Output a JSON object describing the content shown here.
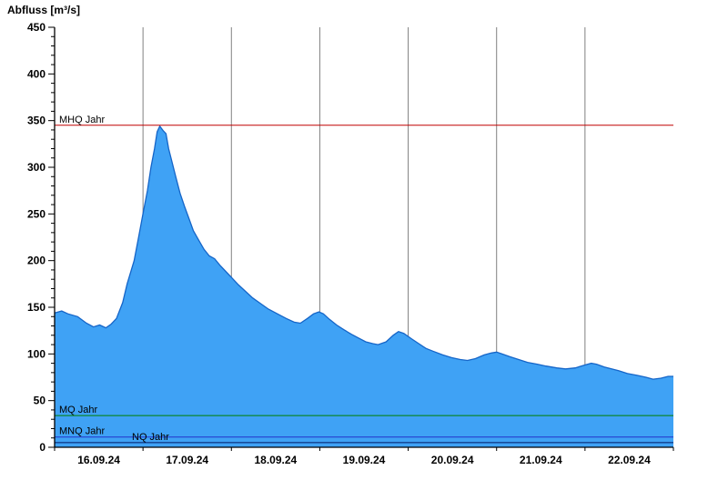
{
  "chart_data": {
    "type": "area",
    "title": "Abfluss [m³/s]",
    "series_name": "Abfluss",
    "ylim": [
      0,
      450
    ],
    "y_major_step": 50,
    "y_minor_step": 10,
    "days_span": 7,
    "day_labels": [
      "16.09.24",
      "17.09.24",
      "18.09.24",
      "19.09.24",
      "20.09.24",
      "21.09.24",
      "22.09.24"
    ],
    "grid": true,
    "legend_position": "none",
    "fill_color": "#3fa2f5",
    "edge_color": "#1565c8",
    "grid_color": "#808080",
    "axis_color": "#000000",
    "reference_lines": [
      {
        "label": "MHQ Jahr",
        "value": 345,
        "color": "#c00000",
        "label_dx": 5
      },
      {
        "label": "MQ Jahr",
        "value": 34,
        "color": "#008000",
        "label_dx": 5
      },
      {
        "label": "MNQ Jahr",
        "value": 11,
        "color": "#2233cc",
        "label_dx": 5
      },
      {
        "label": "NQ Jahr",
        "value": 5,
        "color": "#001a66",
        "label_dx": 85
      }
    ],
    "points": [
      [
        0.0,
        144
      ],
      [
        0.08,
        146
      ],
      [
        0.15,
        143
      ],
      [
        0.26,
        140
      ],
      [
        0.36,
        133
      ],
      [
        0.44,
        129
      ],
      [
        0.51,
        131
      ],
      [
        0.58,
        128
      ],
      [
        0.64,
        132
      ],
      [
        0.7,
        138
      ],
      [
        0.77,
        155
      ],
      [
        0.82,
        175
      ],
      [
        0.9,
        200
      ],
      [
        0.95,
        225
      ],
      [
        1.0,
        250
      ],
      [
        1.05,
        275
      ],
      [
        1.09,
        300
      ],
      [
        1.13,
        320
      ],
      [
        1.16,
        338
      ],
      [
        1.19,
        344
      ],
      [
        1.23,
        339
      ],
      [
        1.26,
        336
      ],
      [
        1.29,
        320
      ],
      [
        1.33,
        305
      ],
      [
        1.37,
        290
      ],
      [
        1.42,
        272
      ],
      [
        1.47,
        258
      ],
      [
        1.52,
        245
      ],
      [
        1.57,
        232
      ],
      [
        1.63,
        222
      ],
      [
        1.69,
        212
      ],
      [
        1.75,
        205
      ],
      [
        1.81,
        202
      ],
      [
        1.87,
        195
      ],
      [
        1.94,
        188
      ],
      [
        2.01,
        181
      ],
      [
        2.08,
        174
      ],
      [
        2.16,
        167
      ],
      [
        2.24,
        160
      ],
      [
        2.33,
        154
      ],
      [
        2.42,
        148
      ],
      [
        2.52,
        143
      ],
      [
        2.62,
        138
      ],
      [
        2.71,
        134
      ],
      [
        2.78,
        133
      ],
      [
        2.86,
        138
      ],
      [
        2.93,
        143
      ],
      [
        2.99,
        145
      ],
      [
        3.04,
        143
      ],
      [
        3.11,
        137
      ],
      [
        3.19,
        131
      ],
      [
        3.27,
        126
      ],
      [
        3.36,
        121
      ],
      [
        3.44,
        117
      ],
      [
        3.52,
        113
      ],
      [
        3.6,
        111
      ],
      [
        3.66,
        110
      ],
      [
        3.75,
        113
      ],
      [
        3.83,
        120
      ],
      [
        3.89,
        124
      ],
      [
        3.95,
        122
      ],
      [
        4.04,
        116
      ],
      [
        4.12,
        111
      ],
      [
        4.2,
        106
      ],
      [
        4.28,
        103
      ],
      [
        4.39,
        99
      ],
      [
        4.49,
        96
      ],
      [
        4.59,
        94
      ],
      [
        4.67,
        93
      ],
      [
        4.76,
        95
      ],
      [
        4.86,
        99
      ],
      [
        4.94,
        101
      ],
      [
        5.0,
        102
      ],
      [
        5.06,
        100
      ],
      [
        5.15,
        97
      ],
      [
        5.25,
        94
      ],
      [
        5.35,
        91
      ],
      [
        5.46,
        89
      ],
      [
        5.56,
        87
      ],
      [
        5.68,
        85
      ],
      [
        5.78,
        84
      ],
      [
        5.89,
        85
      ],
      [
        5.99,
        88
      ],
      [
        6.07,
        90
      ],
      [
        6.13,
        89
      ],
      [
        6.22,
        86
      ],
      [
        6.3,
        84
      ],
      [
        6.38,
        82
      ],
      [
        6.48,
        79
      ],
      [
        6.59,
        77
      ],
      [
        6.69,
        75
      ],
      [
        6.77,
        73
      ],
      [
        6.86,
        74
      ],
      [
        6.94,
        76
      ],
      [
        7.0,
        76
      ]
    ]
  }
}
